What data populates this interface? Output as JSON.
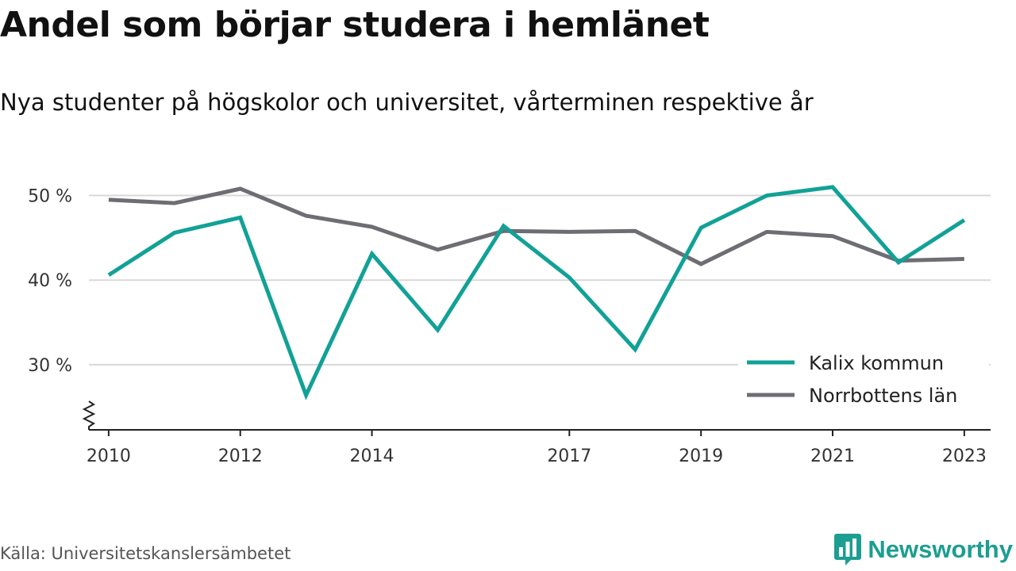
{
  "header": {
    "title": "Andel som börjar studera i hemlänet",
    "subtitle": "Nya studenter på högskolor och universitet, vårterminen respektive år"
  },
  "footer": {
    "source": "Källa: Universitetskanslersämbetet",
    "brand": "Newsworthy",
    "brand_icon": "bar-chart-speech-bubble-icon"
  },
  "colors": {
    "kalix": "#12a196",
    "norrbotten": "#6d6d74",
    "grid": "#d8d8d8",
    "axis": "#222222",
    "brand": "#1c9e91"
  },
  "chart_data": {
    "type": "line",
    "title": "Andel som börjar studera i hemlänet",
    "subtitle": "Nya studenter på högskolor och universitet, vårterminen respektive år",
    "xlabel": "",
    "ylabel": "",
    "x": [
      2010,
      2011,
      2012,
      2013,
      2014,
      2015,
      2016,
      2017,
      2018,
      2019,
      2020,
      2021,
      2022,
      2023
    ],
    "x_tick_values": [
      2010,
      2012,
      2014,
      2017,
      2019,
      2021,
      2023
    ],
    "x_tick_labels": [
      "2010",
      "2012",
      "2014",
      "2017",
      "2019",
      "2021",
      "2023"
    ],
    "xlim": [
      2009.7,
      2023.4
    ],
    "ylim": [
      22.3,
      52.3
    ],
    "y_tick_values": [
      30,
      40,
      50
    ],
    "y_tick_labels": [
      "30 %",
      "40 %",
      "50 %"
    ],
    "y_axis_break": true,
    "grid": "horizontal",
    "legend_position": "bottom-right",
    "series": [
      {
        "name": "Kalix kommun",
        "color": "#12a196",
        "values": [
          40.6,
          45.6,
          47.4,
          26.4,
          43.1,
          34.1,
          46.4,
          40.3,
          31.8,
          46.2,
          50.0,
          51.0,
          42.1,
          47.1
        ]
      },
      {
        "name": "Norrbottens län",
        "color": "#6d6d74",
        "values": [
          49.5,
          49.1,
          50.8,
          47.6,
          46.3,
          43.6,
          45.8,
          45.7,
          45.8,
          41.9,
          45.7,
          45.2,
          42.3,
          42.5
        ]
      }
    ]
  }
}
